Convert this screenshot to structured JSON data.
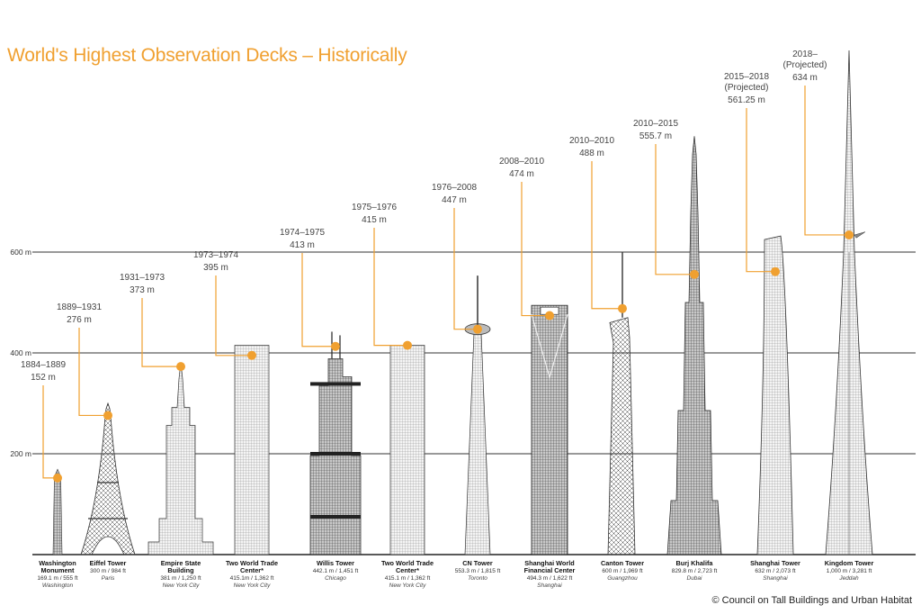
{
  "title": "World's Highest Observation Decks – Historically",
  "copyright": "© Council on Tall Buildings and Urban Habitat",
  "axis": {
    "labels": [
      "200 m",
      "400 m",
      "600 m"
    ],
    "values": [
      200,
      400,
      600
    ]
  },
  "colors": {
    "accent": "#f0a030",
    "building": "#555555",
    "grid": "#333333"
  },
  "buildings": [
    {
      "name": [
        "Washington",
        "Monument"
      ],
      "height_text": "169.1 m / 555 ft",
      "city": "Washington",
      "height_m": 169.1,
      "period": "1884–1889",
      "deck": "152 m",
      "deck_m": 152,
      "shape": "obelisk"
    },
    {
      "name": [
        "Eiffel Tower"
      ],
      "height_text": "300 m / 984 ft",
      "city": "Paris",
      "height_m": 300,
      "period": "1889–1931",
      "deck": "276 m",
      "deck_m": 276,
      "shape": "eiffel"
    },
    {
      "name": [
        "Empire State",
        "Building"
      ],
      "height_text": "381 m / 1,250 ft",
      "city": "New York City",
      "height_m": 381,
      "period": "1931–1973",
      "deck": "373 m",
      "deck_m": 373,
      "shape": "empire"
    },
    {
      "name": [
        "Two World Trade",
        "Center*"
      ],
      "height_text": "415.1m / 1,362 ft",
      "city": "New York City",
      "height_m": 415.1,
      "period": "1973–1974",
      "deck": "395 m",
      "deck_m": 395,
      "shape": "box"
    },
    {
      "name": [
        "Willis Tower"
      ],
      "height_text": "442.1 m / 1,451 ft",
      "city": "Chicago",
      "height_m": 442.1,
      "period": "1974–1975",
      "deck": "413 m",
      "deck_m": 413,
      "shape": "willis"
    },
    {
      "name": [
        "Two World Trade",
        "Center*"
      ],
      "height_text": "415.1 m / 1,362 ft",
      "city": "New York City",
      "height_m": 415.1,
      "period": "1975–1976",
      "deck": "415 m",
      "deck_m": 415,
      "shape": "box"
    },
    {
      "name": [
        "CN Tower"
      ],
      "height_text": "553.3 m / 1,815 ft",
      "city": "Toronto",
      "height_m": 553.3,
      "period": "1976–2008",
      "deck": "447 m",
      "deck_m": 447,
      "shape": "cn"
    },
    {
      "name": [
        "Shanghai World",
        "Financial Center"
      ],
      "height_text": "494.3 m / 1,622 ft",
      "city": "Shanghai",
      "height_m": 494.3,
      "period": "2008–2010",
      "deck": "474 m",
      "deck_m": 474,
      "shape": "swfc"
    },
    {
      "name": [
        "Canton Tower"
      ],
      "height_text": "600 m / 1,969 ft",
      "city": "Guangzhou",
      "height_m": 600,
      "period": "2010–2010",
      "deck": "488 m",
      "deck_m": 488,
      "shape": "canton"
    },
    {
      "name": [
        "Burj Khalifa"
      ],
      "height_text": "829.8 m / 2,723 ft",
      "city": "Dubai",
      "height_m": 829.8,
      "period": "2010–2015",
      "deck": "555.7 m",
      "deck_m": 555.7,
      "shape": "burj"
    },
    {
      "name": [
        "Shanghai Tower"
      ],
      "height_text": "632 m / 2,073 ft",
      "city": "Shanghai",
      "height_m": 632,
      "period": [
        "2015–2018",
        "(Projected)"
      ],
      "deck": "561.25 m",
      "deck_m": 561.25,
      "shape": "shtower"
    },
    {
      "name": [
        "Kingdom Tower"
      ],
      "height_text": "1,000 m / 3,281 ft",
      "city": "Jeddah",
      "height_m": 1000,
      "period": [
        "2018–",
        "(Projected)"
      ],
      "deck": "634 m",
      "deck_m": 634,
      "shape": "kingdom"
    }
  ]
}
